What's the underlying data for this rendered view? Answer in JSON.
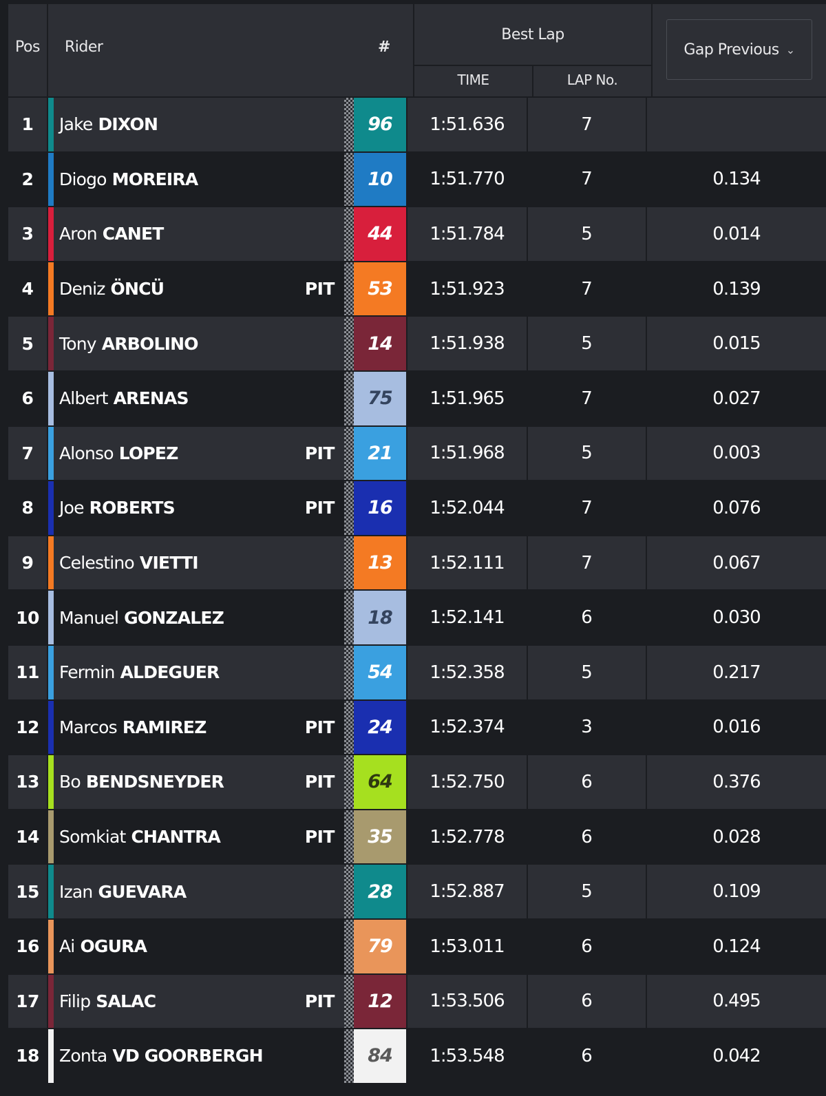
{
  "header": {
    "pos": "Pos",
    "rider": "Rider",
    "number": "#",
    "best_lap": "Best Lap",
    "time": "TIME",
    "lap_no": "LAP No.",
    "gap_select": "Gap Previous"
  },
  "pit_label": "PIT",
  "rows": [
    {
      "pos": "1",
      "first": "Jake",
      "last": "DIXON",
      "pit": false,
      "number": "96",
      "color": "#0f8a8c",
      "num_text": "#ffffff",
      "time": "1:51.636",
      "lap": "7",
      "gap": ""
    },
    {
      "pos": "2",
      "first": "Diogo",
      "last": "MOREIRA",
      "pit": false,
      "number": "10",
      "color": "#1f7bc4",
      "num_text": "#ffffff",
      "time": "1:51.770",
      "lap": "7",
      "gap": "0.134"
    },
    {
      "pos": "3",
      "first": "Aron",
      "last": "CANET",
      "pit": false,
      "number": "44",
      "color": "#d81f3c",
      "num_text": "#ffffff",
      "time": "1:51.784",
      "lap": "5",
      "gap": "0.014"
    },
    {
      "pos": "4",
      "first": "Deniz",
      "last": "ÖNCÜ",
      "pit": true,
      "number": "53",
      "color": "#f47a23",
      "num_text": "#ffffff",
      "time": "1:51.923",
      "lap": "7",
      "gap": "0.139"
    },
    {
      "pos": "5",
      "first": "Tony",
      "last": "ARBOLINO",
      "pit": false,
      "number": "14",
      "color": "#7a2638",
      "num_text": "#ffffff",
      "time": "1:51.938",
      "lap": "5",
      "gap": "0.015"
    },
    {
      "pos": "6",
      "first": "Albert",
      "last": "ARENAS",
      "pit": false,
      "number": "75",
      "color": "#a7bde0",
      "num_text": "#34445e",
      "time": "1:51.965",
      "lap": "7",
      "gap": "0.027"
    },
    {
      "pos": "7",
      "first": "Alonso",
      "last": "LOPEZ",
      "pit": true,
      "number": "21",
      "color": "#3aa0e0",
      "num_text": "#ffffff",
      "time": "1:51.968",
      "lap": "5",
      "gap": "0.003"
    },
    {
      "pos": "8",
      "first": "Joe",
      "last": "ROBERTS",
      "pit": true,
      "number": "16",
      "color": "#1a2fb0",
      "num_text": "#ffffff",
      "time": "1:52.044",
      "lap": "7",
      "gap": "0.076"
    },
    {
      "pos": "9",
      "first": "Celestino",
      "last": "VIETTI",
      "pit": false,
      "number": "13",
      "color": "#f47a23",
      "num_text": "#ffffff",
      "time": "1:52.111",
      "lap": "7",
      "gap": "0.067"
    },
    {
      "pos": "10",
      "first": "Manuel",
      "last": "GONZALEZ",
      "pit": false,
      "number": "18",
      "color": "#a7bde0",
      "num_text": "#34445e",
      "time": "1:52.141",
      "lap": "6",
      "gap": "0.030"
    },
    {
      "pos": "11",
      "first": "Fermin",
      "last": "ALDEGUER",
      "pit": false,
      "number": "54",
      "color": "#3aa0e0",
      "num_text": "#ffffff",
      "time": "1:52.358",
      "lap": "5",
      "gap": "0.217"
    },
    {
      "pos": "12",
      "first": "Marcos",
      "last": "RAMIREZ",
      "pit": true,
      "number": "24",
      "color": "#1a2fb0",
      "num_text": "#ffffff",
      "time": "1:52.374",
      "lap": "3",
      "gap": "0.016"
    },
    {
      "pos": "13",
      "first": "Bo",
      "last": "BENDSNEYDER",
      "pit": true,
      "number": "64",
      "color": "#a6e01f",
      "num_text": "#2e3a10",
      "time": "1:52.750",
      "lap": "6",
      "gap": "0.376"
    },
    {
      "pos": "14",
      "first": "Somkiat",
      "last": "CHANTRA",
      "pit": true,
      "number": "35",
      "color": "#a89a6e",
      "num_text": "#ffffff",
      "time": "1:52.778",
      "lap": "6",
      "gap": "0.028"
    },
    {
      "pos": "15",
      "first": "Izan",
      "last": "GUEVARA",
      "pit": false,
      "number": "28",
      "color": "#0f8a8c",
      "num_text": "#ffffff",
      "time": "1:52.887",
      "lap": "5",
      "gap": "0.109"
    },
    {
      "pos": "16",
      "first": "Ai",
      "last": "OGURA",
      "pit": false,
      "number": "79",
      "color": "#e9955a",
      "num_text": "#ffffff",
      "time": "1:53.011",
      "lap": "6",
      "gap": "0.124"
    },
    {
      "pos": "17",
      "first": "Filip",
      "last": "SALAC",
      "pit": true,
      "number": "12",
      "color": "#7a2638",
      "num_text": "#ffffff",
      "time": "1:53.506",
      "lap": "6",
      "gap": "0.495"
    },
    {
      "pos": "18",
      "first": "Zonta",
      "last": "VD GOORBERGH",
      "pit": false,
      "number": "84",
      "color": "#f2f2f2",
      "num_text": "#5a5a5a",
      "time": "1:53.548",
      "lap": "6",
      "gap": "0.042"
    }
  ]
}
